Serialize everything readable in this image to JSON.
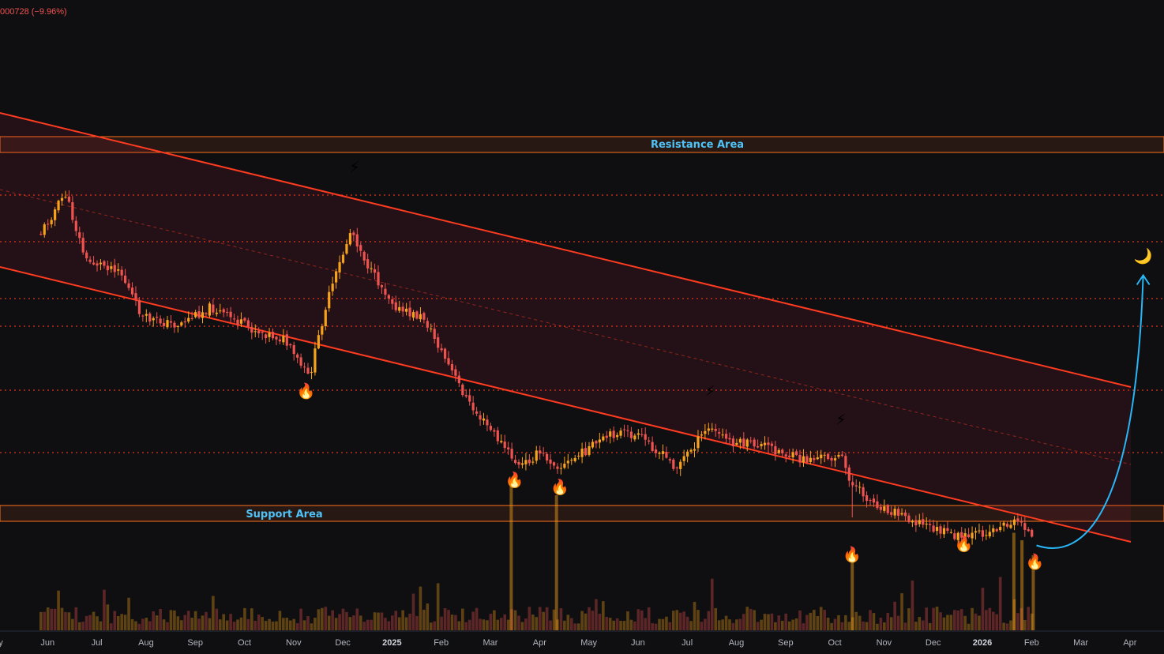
{
  "header": {
    "change_text": "000728 (−9.96%)"
  },
  "chart_data": {
    "type": "candlestick",
    "x_tick_labels": [
      {
        "label": "ay",
        "bold": false
      },
      {
        "label": "Jun",
        "bold": false
      },
      {
        "label": "Jul",
        "bold": false
      },
      {
        "label": "Aug",
        "bold": false
      },
      {
        "label": "Sep",
        "bold": false
      },
      {
        "label": "Oct",
        "bold": false
      },
      {
        "label": "Nov",
        "bold": false
      },
      {
        "label": "Dec",
        "bold": false
      },
      {
        "label": "2025",
        "bold": true
      },
      {
        "label": "Feb",
        "bold": false
      },
      {
        "label": "Mar",
        "bold": false
      },
      {
        "label": "Apr",
        "bold": false
      },
      {
        "label": "May",
        "bold": false
      },
      {
        "label": "Jun",
        "bold": false
      },
      {
        "label": "Jul",
        "bold": false
      },
      {
        "label": "Aug",
        "bold": false
      },
      {
        "label": "Sep",
        "bold": false
      },
      {
        "label": "Oct",
        "bold": false
      },
      {
        "label": "Nov",
        "bold": false
      },
      {
        "label": "Dec",
        "bold": false
      },
      {
        "label": "2026",
        "bold": true
      },
      {
        "label": "Feb",
        "bold": false
      },
      {
        "label": "Mar",
        "bold": false
      },
      {
        "label": "Apr",
        "bold": false
      }
    ],
    "annotations": {
      "resistance_label": "Resistance Area",
      "support_label": "Support Area"
    },
    "price_path": [
      {
        "date": "2024-05-28",
        "price": 0.79
      },
      {
        "date": "2024-06-12",
        "price": 0.9
      },
      {
        "date": "2024-06-25",
        "price": 0.71
      },
      {
        "date": "2024-07-15",
        "price": 0.69
      },
      {
        "date": "2024-07-30",
        "price": 0.55
      },
      {
        "date": "2024-08-20",
        "price": 0.53
      },
      {
        "date": "2024-09-10",
        "price": 0.58
      },
      {
        "date": "2024-10-05",
        "price": 0.52
      },
      {
        "date": "2024-10-25",
        "price": 0.49
      },
      {
        "date": "2024-11-10",
        "price": 0.38
      },
      {
        "date": "2024-11-20",
        "price": 0.58
      },
      {
        "date": "2024-12-06",
        "price": 0.8
      },
      {
        "date": "2024-12-18",
        "price": 0.68
      },
      {
        "date": "2025-01-05",
        "price": 0.57
      },
      {
        "date": "2025-01-20",
        "price": 0.55
      },
      {
        "date": "2025-02-05",
        "price": 0.41
      },
      {
        "date": "2025-02-18",
        "price": 0.3
      },
      {
        "date": "2025-03-05",
        "price": 0.22
      },
      {
        "date": "2025-03-20",
        "price": 0.13
      },
      {
        "date": "2025-04-01",
        "price": 0.17
      },
      {
        "date": "2025-04-15",
        "price": 0.13
      },
      {
        "date": "2025-05-01",
        "price": 0.18
      },
      {
        "date": "2025-05-20",
        "price": 0.23
      },
      {
        "date": "2025-06-05",
        "price": 0.21
      },
      {
        "date": "2025-06-25",
        "price": 0.13
      },
      {
        "date": "2025-07-15",
        "price": 0.24
      },
      {
        "date": "2025-07-30",
        "price": 0.2
      },
      {
        "date": "2025-08-20",
        "price": 0.19
      },
      {
        "date": "2025-09-10",
        "price": 0.15
      },
      {
        "date": "2025-09-25",
        "price": 0.16
      },
      {
        "date": "2025-10-05",
        "price": 0.16
      },
      {
        "date": "2025-10-12",
        "price": 0.08
      },
      {
        "date": "2025-10-25",
        "price": 0.03
      },
      {
        "date": "2025-11-15",
        "price": -0.01
      },
      {
        "date": "2025-12-05",
        "price": -0.05
      },
      {
        "date": "2025-12-20",
        "price": -0.07
      },
      {
        "date": "2026-01-05",
        "price": -0.05
      },
      {
        "date": "2026-01-15",
        "price": -0.03
      },
      {
        "date": "2026-01-25",
        "price": -0.02
      },
      {
        "date": "2026-02-01",
        "price": -0.08
      }
    ],
    "projection": {
      "from": {
        "date": "2026-02-03",
        "price": -0.09
      },
      "to": {
        "date": "2026-04-10",
        "price": 0.67
      }
    },
    "icons": [
      {
        "name": "lightning-icon",
        "date": "2024-12-08",
        "price": 0.96
      },
      {
        "name": "fire-icon",
        "date": "2024-11-08",
        "price": 0.33
      },
      {
        "name": "fire-icon",
        "date": "2025-03-17",
        "price": 0.08
      },
      {
        "name": "fire-icon",
        "date": "2025-04-14",
        "price": 0.06
      },
      {
        "name": "lightning-icon",
        "date": "2025-07-16",
        "price": 0.33
      },
      {
        "name": "lightning-icon",
        "date": "2025-10-05",
        "price": 0.25
      },
      {
        "name": "fire-icon",
        "date": "2025-10-12",
        "price": -0.13
      },
      {
        "name": "fire-icon",
        "date": "2025-12-20",
        "price": -0.1
      },
      {
        "name": "fire-icon",
        "date": "2026-02-02",
        "price": -0.15
      },
      {
        "name": "moon-icon",
        "date": "2026-04-10",
        "price": 0.71
      }
    ],
    "volume_spikes": [
      {
        "date": "2025-03-15",
        "value": 1.0
      },
      {
        "date": "2025-04-12",
        "value": 0.9
      },
      {
        "date": "2025-10-12",
        "value": 0.55
      },
      {
        "date": "2026-01-20",
        "value": 0.65
      },
      {
        "date": "2026-01-25",
        "value": 0.6
      },
      {
        "date": "2026-02-01",
        "value": 0.5
      }
    ],
    "colors": {
      "background": "#0f0f12",
      "up": "#f7a21b",
      "down": "#ef5350",
      "channel": "#ff3b20",
      "zone": "#ff6f1a",
      "label": "#4fc3f7",
      "projection": "#29b6f6"
    }
  }
}
